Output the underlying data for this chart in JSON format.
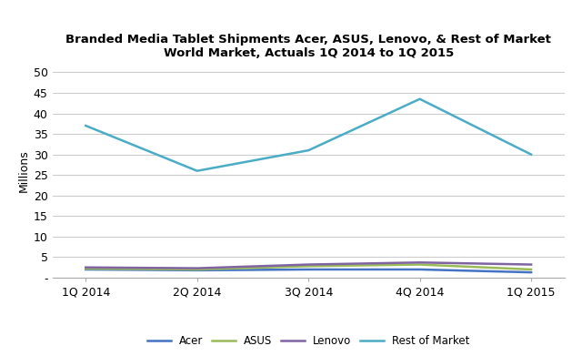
{
  "title_line1": "Branded Media Tablet Shipments Acer, ASUS, Lenovo, & Rest of Market",
  "title_line2": "World Market, Actuals 1Q 2014 to 1Q 2015",
  "ylabel": "Millions",
  "categories": [
    "1Q 2014",
    "2Q 2014",
    "3Q 2014",
    "4Q 2014",
    "1Q 2015"
  ],
  "series_order": [
    "Acer",
    "ASUS",
    "Lenovo",
    "Rest of Market"
  ],
  "series": {
    "Acer": [
      2.0,
      1.8,
      2.0,
      2.0,
      1.3
    ],
    "ASUS": [
      2.2,
      2.0,
      2.8,
      3.2,
      2.0
    ],
    "Lenovo": [
      2.5,
      2.3,
      3.2,
      3.7,
      3.2
    ],
    "Rest of Market": [
      37.0,
      26.0,
      31.0,
      43.5,
      30.0
    ]
  },
  "colors": {
    "Acer": "#4472C4",
    "ASUS": "#9BBB59",
    "Lenovo": "#8064A2",
    "Rest of Market": "#4BACC6"
  },
  "ylim": [
    0,
    52
  ],
  "yticks": [
    0,
    5,
    10,
    15,
    20,
    25,
    30,
    35,
    40,
    45,
    50
  ],
  "ytick_labels": [
    "-",
    "5",
    "10",
    "15",
    "20",
    "25",
    "30",
    "35",
    "40",
    "45",
    "50"
  ],
  "background_color": "#ffffff",
  "grid_color": "#cccccc",
  "title_fontsize": 9.5,
  "axis_label_fontsize": 9,
  "tick_fontsize": 9,
  "legend_fontsize": 8.5,
  "line_width": 1.8
}
